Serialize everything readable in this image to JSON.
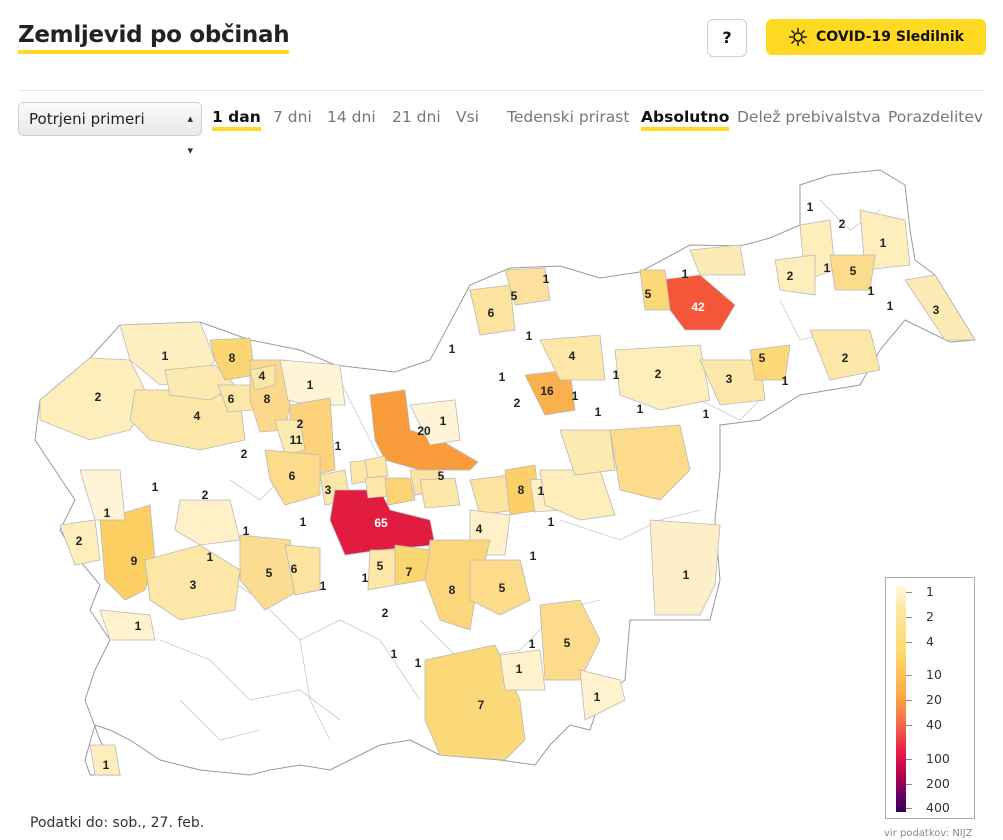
{
  "header": {
    "title": "Zemljevid po občinah",
    "help_label": "?",
    "brand_label": "COVID-19 Sledilnik"
  },
  "controls": {
    "select_value": "Potrjeni primeri",
    "time_options": [
      "1 dan",
      "7 dni",
      "14 dni",
      "21 dni",
      "Vsi"
    ],
    "time_active": "1 dan",
    "view_options": [
      "Tedenski prirast",
      "Absolutno",
      "Delež prebivalstva",
      "Porazdelitev"
    ],
    "view_active": "Absolutno"
  },
  "map": {
    "labels": [
      "1",
      "2",
      "1",
      "2",
      "5",
      "1",
      "5",
      "1",
      "6",
      "42",
      "1",
      "5",
      "1",
      "1",
      "3",
      "1",
      "8",
      "4",
      "2",
      "6",
      "8",
      "4",
      "1",
      "1",
      "1",
      "1",
      "4",
      "1",
      "16",
      "2",
      "2",
      "3",
      "1",
      "11",
      "1",
      "2",
      "20",
      "1",
      "1",
      "1",
      "1",
      "5",
      "1",
      "2",
      "9",
      "1",
      "1",
      "6",
      "2",
      "3",
      "2",
      "65",
      "5",
      "8",
      "1",
      "1",
      "4",
      "1",
      "1",
      "5",
      "6",
      "1",
      "2",
      "1",
      "5",
      "7",
      "8",
      "5",
      "1",
      "1",
      "3",
      "1",
      "2",
      "1",
      "1",
      "1",
      "7",
      "5",
      "1",
      "1",
      "1",
      "1"
    ],
    "bubble": "65"
  },
  "legend": {
    "labels": [
      "1",
      "2",
      "4",
      "10",
      "20",
      "40",
      "100",
      "200",
      "400"
    ],
    "colors": [
      "#fff9e0",
      "#fde9a0",
      "#fdd76a",
      "#f9ac45",
      "#f7704a",
      "#ea1f48",
      "#b3004f",
      "#6a0064",
      "#34005a"
    ]
  },
  "footer": {
    "date_note": "Podatki do: sob., 27. feb.",
    "source": "vir podatkov: NIJZ"
  }
}
